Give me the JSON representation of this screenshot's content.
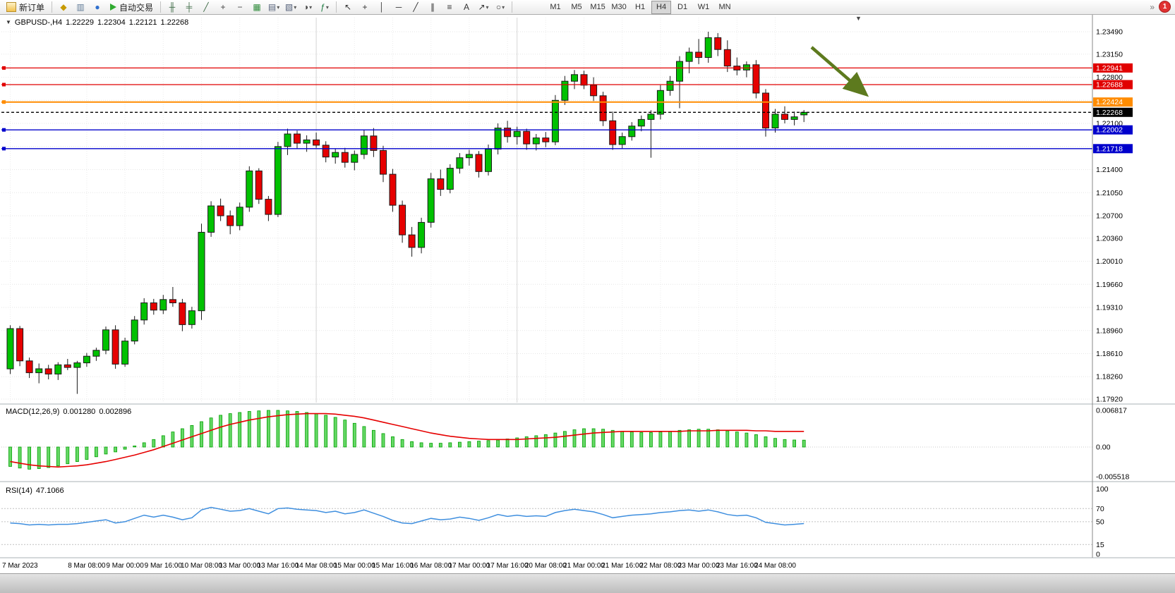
{
  "toolbar": {
    "new_order_label": "新订单",
    "auto_trading_label": "自动交易",
    "caret_glyph": "▾",
    "overflow_glyph": "»",
    "notification_count": "1",
    "timeframes": [
      "M1",
      "M5",
      "M15",
      "M30",
      "H1",
      "H4",
      "D1",
      "W1",
      "MN"
    ],
    "active_timeframe": "H4",
    "icons_left": [
      {
        "name": "mql-editor-icon",
        "glyph": "◆",
        "tint": "#c79a00"
      },
      {
        "name": "market-watch-icon",
        "glyph": "▥",
        "tint": "#5f7a96"
      },
      {
        "name": "community-icon",
        "glyph": "●",
        "tint": "#2f6fce"
      }
    ],
    "icons_chart": [
      {
        "name": "bar-chart-icon",
        "glyph": "╫",
        "tint": "#3e6b46"
      },
      {
        "name": "candlestick-chart-icon",
        "glyph": "╪",
        "tint": "#3e6b46"
      },
      {
        "name": "line-chart-icon",
        "glyph": "╱",
        "tint": "#3e6b46"
      },
      {
        "name": "zoom-in-icon",
        "glyph": "+",
        "tint": "#444444"
      },
      {
        "name": "zoom-out-icon",
        "glyph": "−",
        "tint": "#444444"
      },
      {
        "name": "tile-windows-icon",
        "glyph": "▦",
        "tint": "#2e8b3a"
      },
      {
        "name": "new-chart-icon",
        "glyph": "▤",
        "tint": "#55617a",
        "caret": true
      },
      {
        "name": "profiles-icon",
        "glyph": "▧",
        "tint": "#55617a",
        "caret": true
      },
      {
        "name": "period-icon",
        "glyph": "◑",
        "tint": "#444444",
        "caret": true
      },
      {
        "name": "indicators-icon",
        "glyph": "ƒ",
        "tint": "#1c7a40",
        "caret": true
      }
    ],
    "icons_draw": [
      {
        "name": "cursor-icon",
        "glyph": "↖",
        "tint": "#333333"
      },
      {
        "name": "crosshair-icon",
        "glyph": "+",
        "tint": "#333333"
      },
      {
        "name": "vertical-line-icon",
        "glyph": "│",
        "tint": "#333333"
      },
      {
        "name": "horizontal-line-icon",
        "glyph": "─",
        "tint": "#333333"
      },
      {
        "name": "trendline-icon",
        "glyph": "╱",
        "tint": "#333333"
      },
      {
        "name": "channel-icon",
        "glyph": "∥",
        "tint": "#333333"
      },
      {
        "name": "fibonacci-icon",
        "glyph": "≡",
        "tint": "#333333"
      },
      {
        "name": "text-icon",
        "glyph": "A",
        "tint": "#333333"
      },
      {
        "name": "arrows-icon",
        "glyph": "↗",
        "tint": "#333333",
        "caret": true
      },
      {
        "name": "shapes-icon",
        "glyph": "○",
        "tint": "#333333",
        "caret": true
      }
    ]
  },
  "chart": {
    "symbol_title": "GBPUSD-,H4",
    "collapse_glyph": "▼",
    "shift_marker_glyph": "▼",
    "ohlc": {
      "open": "1.22229",
      "high": "1.22304",
      "low": "1.22121",
      "close": "1.22268"
    }
  },
  "indicators": {
    "macd": {
      "name": "MACD(12,26,9)",
      "value_main": "0.001280",
      "value_signal": "0.002896"
    },
    "rsi": {
      "name": "RSI(14)",
      "value": "47.1066"
    }
  },
  "colors": {
    "bull": "#00c100",
    "bear": "#e60000",
    "wick": "#1a1a1a",
    "macd_hist_fill": "#66d966",
    "macd_hist_stroke": "#00a000",
    "macd_signal": "#e60000",
    "rsi_line": "#3f8fdf",
    "hline_red": "#e10000",
    "hline_orange": "#ff8c00",
    "hline_blue": "#0000cc",
    "price_line": "#000000",
    "arrow": "#5d7a1e"
  },
  "chart_data": {
    "type": "candlestick",
    "symbol": "GBPUSD-",
    "timeframe": "H4",
    "main": {
      "ylim": [
        1.17867,
        1.23704
      ],
      "grid": [
        "1.23490",
        "1.23150",
        "1.22800",
        "1.22450",
        "1.22100",
        "1.21750",
        "1.21400",
        "1.21050",
        "1.20700",
        "1.20360",
        "1.20010",
        "1.19660",
        "1.19310",
        "1.18960",
        "1.18610",
        "1.18260",
        "1.17920"
      ],
      "hlines": [
        {
          "price": 1.22941,
          "color_key": "hline_red",
          "label": "1.22941"
        },
        {
          "price": 1.22688,
          "color_key": "hline_red",
          "label": "1.22688"
        },
        {
          "price": 1.22424,
          "color_key": "hline_orange",
          "label": "1.22424",
          "width": 2
        },
        {
          "price": 1.22268,
          "color_key": "price_line",
          "label": "1.22268",
          "dash": "4,3"
        },
        {
          "price": 1.22002,
          "color_key": "hline_blue",
          "label": "1.22002"
        },
        {
          "price": 1.21718,
          "color_key": "hline_blue",
          "label": "1.21718"
        }
      ],
      "vlines": [
        32,
        53
      ]
    },
    "candles": [
      [
        1.1838,
        1.1904,
        1.183,
        1.1899
      ],
      [
        1.1899,
        1.1903,
        1.1842,
        1.185
      ],
      [
        1.185,
        1.1855,
        1.1824,
        1.1832
      ],
      [
        1.1832,
        1.1846,
        1.1816,
        1.1838
      ],
      [
        1.1838,
        1.1844,
        1.1822,
        1.183
      ],
      [
        1.183,
        1.1848,
        1.1821,
        1.1844
      ],
      [
        1.1844,
        1.1853,
        1.1836,
        1.184
      ],
      [
        1.184,
        1.185,
        1.18,
        1.1847
      ],
      [
        1.1847,
        1.1862,
        1.1841,
        1.1857
      ],
      [
        1.1857,
        1.187,
        1.185,
        1.1866
      ],
      [
        1.1866,
        1.1902,
        1.186,
        1.1897
      ],
      [
        1.1897,
        1.1904,
        1.1838,
        1.1845
      ],
      [
        1.1845,
        1.1885,
        1.1841,
        1.188
      ],
      [
        1.188,
        1.1918,
        1.1875,
        1.1912
      ],
      [
        1.1912,
        1.1945,
        1.1905,
        1.1938
      ],
      [
        1.1938,
        1.1944,
        1.192,
        1.1927
      ],
      [
        1.1927,
        1.195,
        1.1921,
        1.1943
      ],
      [
        1.1943,
        1.1962,
        1.1932,
        1.1938
      ],
      [
        1.1938,
        1.1944,
        1.1895,
        1.1905
      ],
      [
        1.1905,
        1.1932,
        1.1899,
        1.1926
      ],
      [
        1.1926,
        1.2058,
        1.1912,
        1.2045
      ],
      [
        1.2045,
        1.2092,
        1.2038,
        1.2085
      ],
      [
        1.2085,
        1.2096,
        1.2062,
        1.207
      ],
      [
        1.207,
        1.2078,
        1.2042,
        1.2055
      ],
      [
        1.2055,
        1.209,
        1.2048,
        1.2083
      ],
      [
        1.2083,
        1.2145,
        1.2076,
        1.2138
      ],
      [
        1.2138,
        1.2142,
        1.2088,
        1.2095
      ],
      [
        1.2095,
        1.21,
        1.2062,
        1.2072
      ],
      [
        1.2072,
        1.2182,
        1.2068,
        1.2175
      ],
      [
        1.2175,
        1.2202,
        1.2162,
        1.2194
      ],
      [
        1.2194,
        1.2199,
        1.2172,
        1.218
      ],
      [
        1.218,
        1.2192,
        1.2167,
        1.2185
      ],
      [
        1.2185,
        1.2196,
        1.2173,
        1.2177
      ],
      [
        1.2177,
        1.2183,
        1.2151,
        1.2159
      ],
      [
        1.2159,
        1.2171,
        1.2149,
        1.2166
      ],
      [
        1.2166,
        1.2173,
        1.2143,
        1.2151
      ],
      [
        1.2151,
        1.2169,
        1.2139,
        1.2163
      ],
      [
        1.2163,
        1.2201,
        1.2156,
        1.2191
      ],
      [
        1.2191,
        1.2203,
        1.2159,
        1.2169
      ],
      [
        1.2169,
        1.2176,
        1.2121,
        1.2133
      ],
      [
        1.2133,
        1.2141,
        1.2076,
        1.2086
      ],
      [
        1.2086,
        1.2093,
        1.2029,
        1.2041
      ],
      [
        1.2041,
        1.2053,
        1.2008,
        1.2022
      ],
      [
        1.2022,
        1.2067,
        1.2013,
        1.206
      ],
      [
        1.206,
        1.2135,
        1.2052,
        1.2126
      ],
      [
        1.2126,
        1.214,
        1.21,
        1.211
      ],
      [
        1.211,
        1.2148,
        1.2104,
        1.2142
      ],
      [
        1.2142,
        1.2165,
        1.2134,
        1.2158
      ],
      [
        1.2158,
        1.217,
        1.2146,
        1.2163
      ],
      [
        1.2163,
        1.2168,
        1.2128,
        1.2137
      ],
      [
        1.2137,
        1.2178,
        1.2131,
        1.2171
      ],
      [
        1.2171,
        1.221,
        1.2163,
        1.2203
      ],
      [
        1.2203,
        1.2214,
        1.2181,
        1.219
      ],
      [
        1.219,
        1.2205,
        1.2178,
        1.2198
      ],
      [
        1.2198,
        1.2202,
        1.217,
        1.2179
      ],
      [
        1.2179,
        1.2194,
        1.2169,
        1.2188
      ],
      [
        1.2188,
        1.2197,
        1.2174,
        1.2182
      ],
      [
        1.2182,
        1.2253,
        1.2177,
        1.2245
      ],
      [
        1.2245,
        1.2282,
        1.2238,
        1.2274
      ],
      [
        1.2274,
        1.2291,
        1.2262,
        1.2284
      ],
      [
        1.2284,
        1.229,
        1.2262,
        1.2268
      ],
      [
        1.2268,
        1.228,
        1.2244,
        1.2252
      ],
      [
        1.2252,
        1.2258,
        1.2206,
        1.2214
      ],
      [
        1.2214,
        1.2228,
        1.217,
        1.2178
      ],
      [
        1.2178,
        1.2196,
        1.2172,
        1.219
      ],
      [
        1.219,
        1.2212,
        1.2184,
        1.2206
      ],
      [
        1.2206,
        1.2222,
        1.2198,
        1.2216
      ],
      [
        1.2216,
        1.223,
        1.2158,
        1.2224
      ],
      [
        1.2224,
        1.2268,
        1.2216,
        1.226
      ],
      [
        1.226,
        1.2282,
        1.2252,
        1.2274
      ],
      [
        1.2274,
        1.2312,
        1.2233,
        1.2304
      ],
      [
        1.2304,
        1.2325,
        1.2286,
        1.2318
      ],
      [
        1.2318,
        1.2338,
        1.23,
        1.231
      ],
      [
        1.231,
        1.2349,
        1.2302,
        1.234
      ],
      [
        1.234,
        1.2347,
        1.2312,
        1.2322
      ],
      [
        1.2322,
        1.2336,
        1.2288,
        1.2297
      ],
      [
        1.2297,
        1.231,
        1.2283,
        1.2291
      ],
      [
        1.2291,
        1.2304,
        1.228,
        1.2299
      ],
      [
        1.2299,
        1.2306,
        1.2248,
        1.2256
      ],
      [
        1.2256,
        1.2262,
        1.219,
        1.2203
      ],
      [
        1.2203,
        1.2232,
        1.2196,
        1.2224
      ],
      [
        1.2224,
        1.2236,
        1.221,
        1.2216
      ],
      [
        1.2216,
        1.2228,
        1.2207,
        1.222
      ],
      [
        1.22229,
        1.22304,
        1.22121,
        1.22268
      ]
    ],
    "macd": {
      "ylim": [
        -0.00615,
        0.00745
      ],
      "axis_labels": [
        "0.006817",
        "0.00",
        "-0.005518"
      ],
      "histogram": [
        -0.0036,
        -0.0039,
        -0.0041,
        -0.004,
        -0.0038,
        -0.0035,
        -0.0031,
        -0.0027,
        -0.0023,
        -0.0018,
        -0.0013,
        -0.0009,
        -0.0004,
        0.0002,
        0.0008,
        0.0014,
        0.0021,
        0.0028,
        0.0034,
        0.004,
        0.0047,
        0.0054,
        0.0059,
        0.0062,
        0.0064,
        0.0066,
        0.0067,
        0.0068,
        0.0068,
        0.0067,
        0.0066,
        0.0064,
        0.0062,
        0.0059,
        0.0055,
        0.005,
        0.0044,
        0.0038,
        0.0031,
        0.0025,
        0.0019,
        0.0014,
        0.001,
        0.0008,
        0.0007,
        0.0007,
        0.0008,
        0.0009,
        0.001,
        0.0011,
        0.0012,
        0.0013,
        0.0015,
        0.0017,
        0.0019,
        0.0021,
        0.0023,
        0.0026,
        0.0029,
        0.0032,
        0.0034,
        0.0034,
        0.0033,
        0.0031,
        0.0029,
        0.0028,
        0.0027,
        0.0027,
        0.0028,
        0.0029,
        0.0031,
        0.0032,
        0.0033,
        0.0033,
        0.0032,
        0.003,
        0.0028,
        0.0026,
        0.0023,
        0.0019,
        0.0016,
        0.0014,
        0.0013,
        0.00128
      ],
      "signal": [
        -0.0027,
        -0.003,
        -0.0033,
        -0.0035,
        -0.0036,
        -0.0037,
        -0.0036,
        -0.0035,
        -0.0033,
        -0.003,
        -0.0027,
        -0.0023,
        -0.0019,
        -0.0015,
        -0.001,
        -0.0005,
        0.0001,
        0.0007,
        0.0013,
        0.0019,
        0.0025,
        0.0031,
        0.0037,
        0.0042,
        0.0046,
        0.005,
        0.0053,
        0.0056,
        0.0058,
        0.006,
        0.0061,
        0.0062,
        0.0062,
        0.0062,
        0.0061,
        0.0059,
        0.0057,
        0.0054,
        0.005,
        0.0046,
        0.0042,
        0.0038,
        0.0034,
        0.003,
        0.0026,
        0.0023,
        0.002,
        0.0018,
        0.0016,
        0.0015,
        0.0014,
        0.0014,
        0.0014,
        0.0014,
        0.0015,
        0.0016,
        0.0017,
        0.0018,
        0.002,
        0.0022,
        0.0024,
        0.0026,
        0.0027,
        0.0028,
        0.0029,
        0.0029,
        0.0029,
        0.0029,
        0.0029,
        0.0029,
        0.0029,
        0.003,
        0.003,
        0.003,
        0.0031,
        0.0031,
        0.0031,
        0.0031,
        0.003,
        0.003,
        0.0029,
        0.0029,
        0.0029,
        0.002896
      ]
    },
    "rsi": {
      "ylim": [
        -3,
        107
      ],
      "levels": [
        70,
        50,
        15
      ],
      "axis_labels": [
        "100",
        "70",
        "50",
        "15",
        "0"
      ],
      "values": [
        48,
        47,
        45,
        46,
        45,
        46,
        46,
        47,
        49,
        51,
        53,
        48,
        50,
        55,
        60,
        57,
        60,
        57,
        53,
        56,
        68,
        72,
        69,
        66,
        67,
        70,
        66,
        62,
        70,
        71,
        69,
        68,
        67,
        64,
        66,
        62,
        64,
        68,
        63,
        58,
        52,
        48,
        47,
        51,
        55,
        53,
        54,
        57,
        55,
        52,
        56,
        61,
        58,
        60,
        58,
        59,
        58,
        64,
        67,
        69,
        67,
        65,
        61,
        56,
        58,
        60,
        61,
        62,
        64,
        65,
        67,
        68,
        66,
        68,
        65,
        61,
        59,
        60,
        56,
        49,
        47,
        45,
        46,
        47.1
      ]
    },
    "x_labels": [
      {
        "i": 0,
        "t": "7 Mar 2023"
      },
      {
        "i": 8,
        "t": "8 Mar 08:00"
      },
      {
        "i": 12,
        "t": "9 Mar 00:00"
      },
      {
        "i": 16,
        "t": "9 Mar 16:00"
      },
      {
        "i": 20,
        "t": "10 Mar 08:00"
      },
      {
        "i": 24,
        "t": "13 Mar 00:00"
      },
      {
        "i": 28,
        "t": "13 Mar 16:00"
      },
      {
        "i": 32,
        "t": "14 Mar 08:00"
      },
      {
        "i": 36,
        "t": "15 Mar 00:00"
      },
      {
        "i": 40,
        "t": "15 Mar 16:00"
      },
      {
        "i": 44,
        "t": "16 Mar 08:00"
      },
      {
        "i": 48,
        "t": "17 Mar 00:00"
      },
      {
        "i": 52,
        "t": "17 Mar 16:00"
      },
      {
        "i": 56,
        "t": "20 Mar 08:00"
      },
      {
        "i": 60,
        "t": "21 Mar 00:00"
      },
      {
        "i": 64,
        "t": "21 Mar 16:00"
      },
      {
        "i": 68,
        "t": "22 Mar 08:00"
      },
      {
        "i": 72,
        "t": "23 Mar 00:00"
      },
      {
        "i": 76,
        "t": "23 Mar 16:00"
      },
      {
        "i": 80,
        "t": "24 Mar 08:00"
      }
    ],
    "annotations": [
      {
        "type": "arrow",
        "from": [
          1150,
          46
        ],
        "to": [
          1226,
          112
        ]
      }
    ]
  }
}
